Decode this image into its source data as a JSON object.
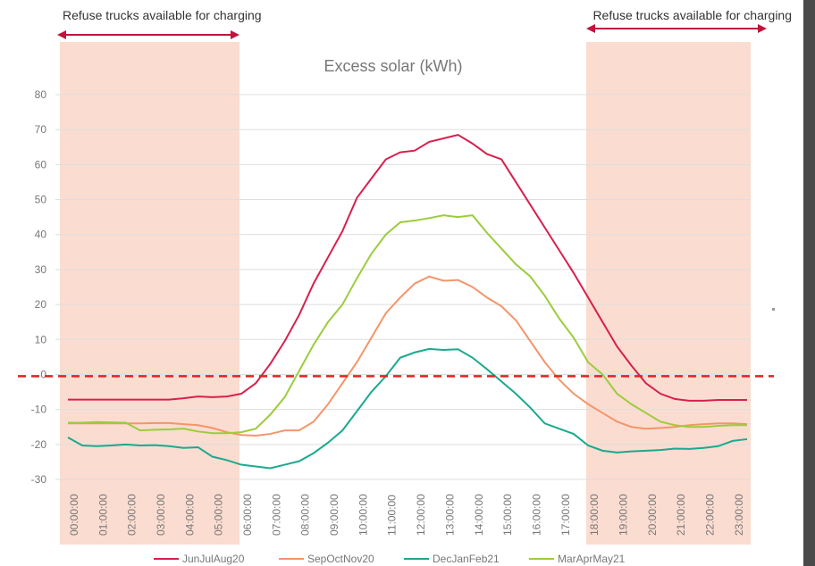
{
  "chart_data": {
    "type": "line",
    "title": "Excess solar (kWh)",
    "annotations": [
      "Refuse trucks available for charging",
      "Refuse trucks available for charging"
    ],
    "categories": [
      "00:00:00",
      null,
      "01:00:00",
      null,
      "02:00:00",
      null,
      "03:00:00",
      null,
      "04:00:00",
      null,
      "05:00:00",
      null,
      "06:00:00",
      null,
      "07:00:00",
      null,
      "08:00:00",
      null,
      "09:00:00",
      null,
      "10:00:00",
      null,
      "11:00:00",
      null,
      "12:00:00",
      null,
      "13:00:00",
      null,
      "14:00:00",
      null,
      "15:00:00",
      null,
      "16:00:00",
      null,
      "17:00:00",
      null,
      "18:00:00",
      null,
      "19:00:00",
      null,
      "20:00:00",
      null,
      "21:00:00",
      null,
      "22:00:00",
      null,
      "23:00:00",
      null
    ],
    "series": [
      {
        "name": "JunJulAug20",
        "color": "#d6204e",
        "values": [
          -7.2,
          -7.2,
          -7.2,
          -7.2,
          -7.2,
          -7.2,
          -7.2,
          -7.2,
          -6.8,
          -6.3,
          -6.5,
          -6.3,
          -5.5,
          -2.5,
          3,
          9.5,
          17,
          26,
          33.5,
          41,
          50.5,
          56,
          61.5,
          63.5,
          64,
          66.5,
          67.5,
          68.5,
          66,
          63,
          61.5,
          55,
          48.5,
          42,
          35.5,
          29,
          22,
          15,
          8,
          2.5,
          -2.5,
          -5.5,
          -7,
          -7.5,
          -7.5,
          -7.3,
          -7.3,
          -7.3
        ]
      },
      {
        "name": "SepOctNov20",
        "color": "#f4956a",
        "values": [
          -14,
          -14,
          -14,
          -14,
          -14,
          -14,
          -13.9,
          -13.9,
          -14.2,
          -14.5,
          -15.3,
          -16.5,
          -17.3,
          -17.5,
          -17,
          -16,
          -16,
          -13.5,
          -8.5,
          -2.5,
          3.5,
          10.5,
          17.5,
          22,
          26,
          28,
          26.8,
          27,
          25,
          22,
          19.5,
          15.5,
          9.5,
          3.5,
          -1.5,
          -5.5,
          -8.5,
          -11,
          -13.5,
          -15,
          -15.5,
          -15.3,
          -15,
          -14.5,
          -14.2,
          -14,
          -14,
          -14.2
        ]
      },
      {
        "name": "DecJanFeb21",
        "color": "#1aaa8e",
        "values": [
          -18,
          -20.3,
          -20.5,
          -20.3,
          -20,
          -20.3,
          -20.2,
          -20.5,
          -21,
          -20.8,
          -23.5,
          -24.5,
          -25.8,
          -26.3,
          -26.8,
          -25.8,
          -24.8,
          -22.5,
          -19.5,
          -16,
          -10.5,
          -5,
          -0.5,
          4.8,
          6.3,
          7.3,
          7,
          7.2,
          4.8,
          1.5,
          -2,
          -5.5,
          -9.5,
          -14,
          -15.5,
          -17,
          -20.3,
          -21.8,
          -22.3,
          -22,
          -21.8,
          -21.6,
          -21.2,
          -21.3,
          -21,
          -20.5,
          -19,
          -18.5
        ]
      },
      {
        "name": "MarAprMay21",
        "color": "#9ccc3c",
        "values": [
          -13.8,
          -13.8,
          -13.6,
          -13.7,
          -13.8,
          -16,
          -15.8,
          -15.7,
          -15.5,
          -16.3,
          -16.8,
          -16.8,
          -16.5,
          -15.5,
          -11.5,
          -6.5,
          1,
          8.5,
          15,
          20,
          27.5,
          34.5,
          40,
          43.5,
          44,
          44.7,
          45.5,
          45,
          45.5,
          40.5,
          36,
          31.5,
          28,
          22.5,
          16,
          10.5,
          3.5,
          0,
          -5.5,
          -8.5,
          -11,
          -13.5,
          -14.5,
          -15,
          -15,
          -14.7,
          -14.5,
          -14.5
        ]
      }
    ],
    "reference_line": {
      "value": -0.5,
      "color": "#e8201c"
    },
    "ylim": [
      -30,
      80
    ],
    "yticks": [
      -30,
      -20,
      -10,
      0,
      10,
      20,
      30,
      40,
      50,
      60,
      70,
      80
    ],
    "grid": true
  }
}
